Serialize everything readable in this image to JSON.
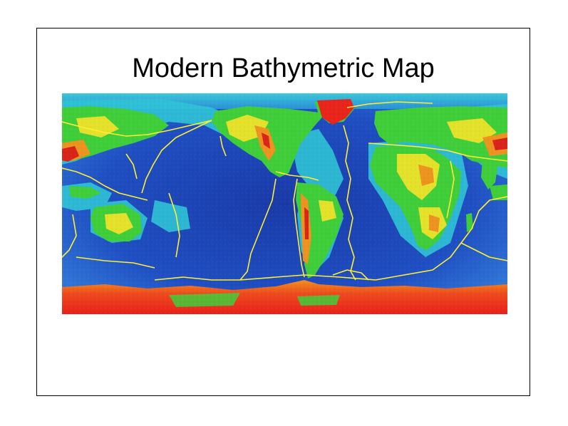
{
  "slide": {
    "title": "Modern Bathymetric Map"
  },
  "map": {
    "type": "world bathymetric / topographic relief map",
    "projection": "equirectangular",
    "features": [
      "ocean-floor-bathymetry",
      "continental-topography",
      "plate-boundaries"
    ],
    "colors": {
      "deep_ocean": "#1a3fb0",
      "mid_ocean": "#2f6fd8",
      "shelf": "#2cc6d8",
      "lowland": "#3fcf3a",
      "upland": "#e9e22a",
      "highland": "#e8951f",
      "peak": "#d9251b",
      "plate_boundary": "#ffee33"
    }
  }
}
